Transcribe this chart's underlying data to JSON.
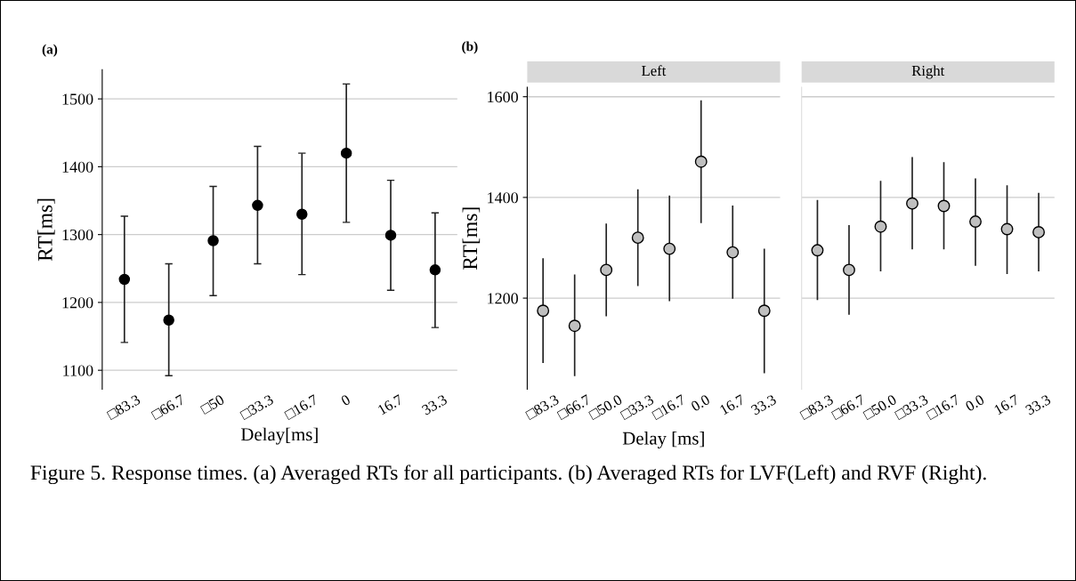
{
  "chart_data": [
    {
      "type": "scatter",
      "title": "(a)",
      "xlabel": "Delay[ms]",
      "ylabel": "RT[ms]",
      "categories": [
        "□83.3",
        "□66.7",
        "□50",
        "□33.3",
        "□16.7",
        "0",
        "16.7",
        "33.3"
      ],
      "series": [
        {
          "color": "#000000",
          "values": [
            1234,
            1174,
            1291,
            1343,
            1330,
            1420,
            1299,
            1248
          ],
          "errors": [
            [
              1141,
              1327
            ],
            [
              1092,
              1257
            ],
            [
              1210,
              1371
            ],
            [
              1257,
              1430
            ],
            [
              1241,
              1420
            ],
            [
              1318,
              1522
            ],
            [
              1218,
              1380
            ],
            [
              1163,
              1332
            ]
          ]
        }
      ],
      "ylim": [
        1072,
        1543
      ],
      "yticks": [
        1100,
        1200,
        1300,
        1400,
        1500
      ],
      "grid": "y",
      "marker": "circle",
      "legend": false,
      "annotations": [
        "Figure 5. Response times. (a) Averaged RTs for all participants. (b) Averaged RTs for LVF(Left) and RVF (Right)."
      ]
    },
    {
      "type": "scatter",
      "title": "Left",
      "subtitle": "(b)",
      "xlabel": "Delay [ms]",
      "ylabel": "RT[ms]",
      "categories": [
        "□83.3",
        "□66.7",
        "□50.0",
        "□33.3",
        "□16.7",
        "0.0",
        "16.7",
        "33.3"
      ],
      "series": [
        {
          "color": "#bfbfbf",
          "values": [
            1175,
            1145,
            1256,
            1320,
            1298,
            1471,
            1291,
            1175
          ],
          "errors": [
            [
              1071,
              1279
            ],
            [
              1045,
              1247
            ],
            [
              1164,
              1348
            ],
            [
              1224,
              1416
            ],
            [
              1194,
              1404
            ],
            [
              1349,
              1593
            ],
            [
              1199,
              1384
            ],
            [
              1051,
              1298
            ]
          ]
        }
      ],
      "ylim": [
        1019,
        1619
      ],
      "yticks": [
        1200,
        1400,
        1600
      ],
      "grid": "y",
      "marker": "circle",
      "legend": false
    },
    {
      "type": "scatter",
      "title": "Right",
      "categories": [
        "□83.3",
        "□66.7",
        "□50.0",
        "□33.3",
        "□16.7",
        "0.0",
        "16.7",
        "33.3"
      ],
      "series": [
        {
          "color": "#bfbfbf",
          "values": [
            1295,
            1256,
            1342,
            1388,
            1383,
            1352,
            1337,
            1331
          ],
          "errors": [
            [
              1196,
              1395
            ],
            [
              1167,
              1345
            ],
            [
              1253,
              1433
            ],
            [
              1297,
              1480
            ],
            [
              1297,
              1470
            ],
            [
              1264,
              1438
            ],
            [
              1248,
              1424
            ],
            [
              1253,
              1409
            ]
          ]
        }
      ],
      "ylim": [
        1019,
        1619
      ],
      "yticks": [
        1200,
        1400,
        1600
      ],
      "grid": "y",
      "marker": "circle",
      "legend": false,
      "tick_labels": "x"
    }
  ]
}
